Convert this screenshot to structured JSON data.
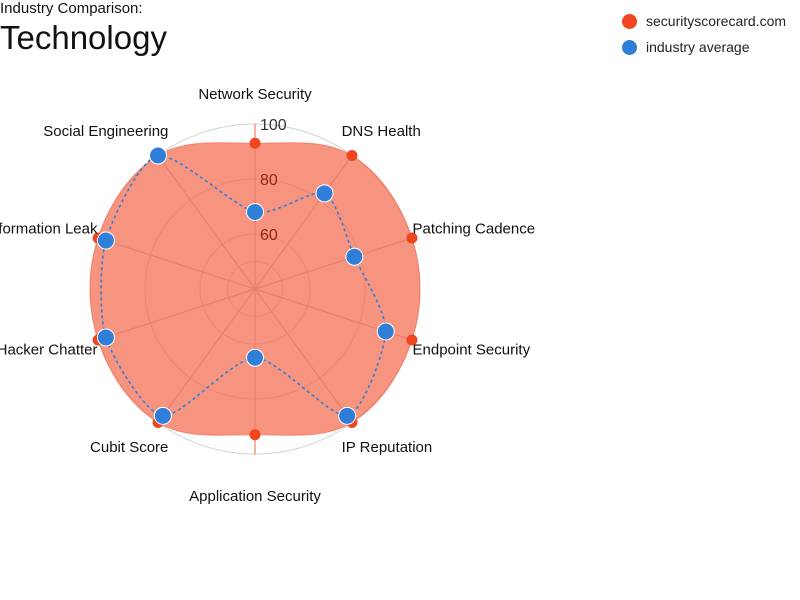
{
  "header": {
    "subtitle": "Industry Comparison:",
    "title": "Technology"
  },
  "colors": {
    "company_fill": "#f26b4f",
    "company_point": "#f0461f",
    "industry": "#2f7fd8",
    "grid": "#d0d0d0",
    "spoke": "#e8806a",
    "tick_upper": "#333333",
    "tick_lower": "#8a2a12"
  },
  "chart_data": {
    "type": "radar",
    "title": "Technology",
    "subtitle": "Industry Comparison:",
    "radial_range": [
      40,
      100
    ],
    "radial_ticks": [
      60,
      80,
      100
    ],
    "grid": true,
    "legend_position": "top-right",
    "axes": [
      "Network Security",
      "DNS Health",
      "Patching Cadence",
      "Endpoint Security",
      "IP Reputation",
      "Application Security",
      "Cubit Score",
      "Hacker Chatter",
      "Information Leak",
      "Social Engineering"
    ],
    "series": [
      {
        "name": "securityscorecard.com",
        "values": [
          93,
          100,
          100,
          100,
          100,
          93,
          100,
          100,
          100,
          100
        ],
        "style": "filled-area"
      },
      {
        "name": "industry average",
        "values": [
          68,
          83,
          78,
          90,
          97,
          65,
          97,
          97,
          97,
          100
        ],
        "style": "dotted-line"
      }
    ]
  }
}
